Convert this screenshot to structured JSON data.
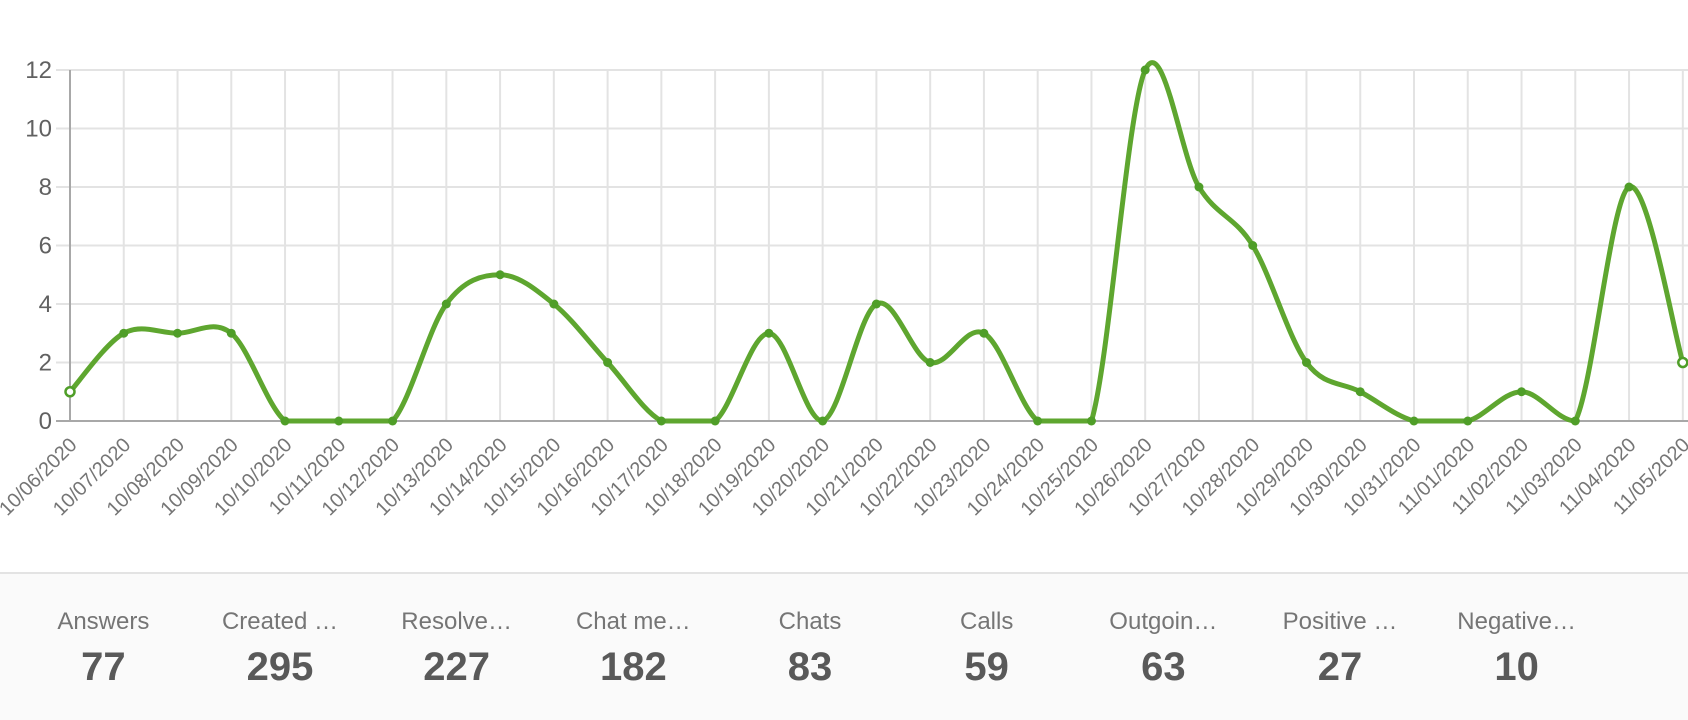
{
  "chart_data": {
    "type": "line",
    "title": "",
    "xlabel": "",
    "ylabel": "",
    "x": [
      "10/06/2020",
      "10/07/2020",
      "10/08/2020",
      "10/09/2020",
      "10/10/2020",
      "10/11/2020",
      "10/12/2020",
      "10/13/2020",
      "10/14/2020",
      "10/15/2020",
      "10/16/2020",
      "10/17/2020",
      "10/18/2020",
      "10/19/2020",
      "10/20/2020",
      "10/21/2020",
      "10/22/2020",
      "10/23/2020",
      "10/24/2020",
      "10/25/2020",
      "10/26/2020",
      "10/27/2020",
      "10/28/2020",
      "10/29/2020",
      "10/30/2020",
      "10/31/2020",
      "11/01/2020",
      "11/02/2020",
      "11/03/2020",
      "11/04/2020",
      "11/05/2020"
    ],
    "values": [
      1,
      3,
      3,
      3,
      0,
      0,
      0,
      4,
      5,
      4,
      2,
      0,
      0,
      3,
      0,
      4,
      2,
      3,
      0,
      0,
      12,
      8,
      6,
      2,
      1,
      0,
      0,
      1,
      0,
      8,
      2
    ],
    "ylim": [
      0,
      12
    ],
    "yticks": [
      0,
      2,
      4,
      6,
      8,
      10,
      12
    ],
    "grid": "on",
    "legend": "none",
    "smooth": true,
    "colors": {
      "line": "#5ea62f",
      "marker": "#4f9e28",
      "marker_end_fill": "#ffffff",
      "grid": "#e3e3e3",
      "axis": "#a8a8a8",
      "y_tick_label": "#616161",
      "x_tick_label": "#757575"
    }
  },
  "stats": {
    "items": [
      {
        "label": "Answers",
        "value": "77"
      },
      {
        "label": "Created …",
        "value": "295"
      },
      {
        "label": "Resolve…",
        "value": "227"
      },
      {
        "label": "Chat me…",
        "value": "182"
      },
      {
        "label": "Chats",
        "value": "83"
      },
      {
        "label": "Calls",
        "value": "59"
      },
      {
        "label": "Outgoin…",
        "value": "63"
      },
      {
        "label": "Positive …",
        "value": "27"
      },
      {
        "label": "Negative…",
        "value": "10"
      }
    ]
  }
}
